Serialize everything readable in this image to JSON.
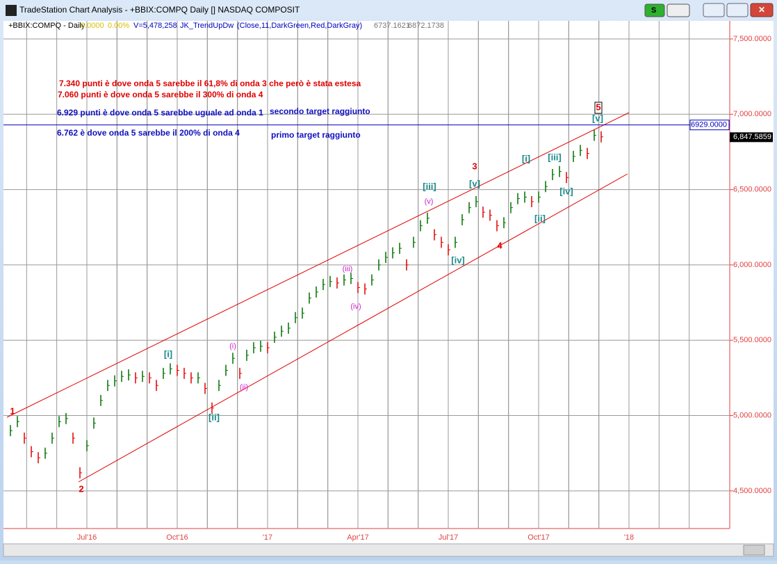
{
  "window": {
    "title": "TradeStation Chart Analysis - +BBIX:COMPQ Daily [] NASDAQ COMPOSIT",
    "button": "S"
  },
  "chart_data": {
    "type": "ohlc",
    "info": [
      "+BBIX:COMPQ - Daily",
      "0.0000",
      "0.00%",
      "V=5,478,258",
      "JK_TrendUpDw",
      "(Close,11,DarkGreen,Red,DarkGray)",
      "6737.1621",
      "6872.1738"
    ],
    "categories": [
      null,
      null,
      null,
      null,
      null,
      null,
      null,
      null,
      null,
      null,
      null,
      "Jul'16",
      null,
      null,
      null,
      null,
      null,
      null,
      null,
      null,
      null,
      null,
      null,
      null,
      "Oct'16",
      null,
      null,
      null,
      null,
      null,
      null,
      null,
      null,
      null,
      null,
      null,
      null,
      "'17",
      null,
      null,
      null,
      null,
      null,
      null,
      null,
      null,
      null,
      null,
      null,
      null,
      "Apr'17",
      null,
      null,
      null,
      null,
      null,
      null,
      null,
      null,
      null,
      null,
      null,
      null,
      "Jul'17",
      null,
      null,
      null,
      null,
      null,
      null,
      null,
      null,
      null,
      null,
      null,
      null,
      "Oct'17",
      null,
      null,
      null,
      null,
      null,
      null,
      null,
      null,
      null,
      null,
      null,
      null,
      "'18"
    ],
    "values": [
      4900,
      4960,
      4850,
      4760,
      4720,
      4750,
      4850,
      4960,
      4980,
      4850,
      4620,
      4800,
      4950,
      5100,
      5200,
      5230,
      5260,
      5270,
      5250,
      5260,
      5250,
      5200,
      5280,
      5310,
      5300,
      5280,
      5250,
      5250,
      5180,
      5050,
      5200,
      5300,
      5380,
      5280,
      5400,
      5450,
      5460,
      5450,
      5520,
      5560,
      5580,
      5650,
      5680,
      5780,
      5820,
      5870,
      5890,
      5880,
      5900,
      5910,
      5850,
      5840,
      5900,
      6000,
      6050,
      6080,
      6110,
      6000,
      6150,
      6260,
      6310,
      6200,
      6150,
      6100,
      6150,
      6300,
      6380,
      6420,
      6350,
      6330,
      6260,
      6280,
      6380,
      6440,
      6450,
      6420,
      6450,
      6520,
      6600,
      6620,
      6580,
      6720,
      6760,
      6740,
      6860,
      6850,
      null,
      null,
      null,
      null
    ],
    "up_color": "#007000",
    "down_color": "#e00000",
    "ylim": [
      4250,
      7620
    ],
    "yticks": [
      {
        "value": 4500,
        "label": "4,500.0000"
      },
      {
        "value": 5000,
        "label": "5,000.0000"
      },
      {
        "value": 5500,
        "label": "5,500.0000"
      },
      {
        "value": 6000,
        "label": "6,000.0000"
      },
      {
        "value": 6500,
        "label": "6,500.0000"
      },
      {
        "value": 7000,
        "label": "7,000.0000"
      },
      {
        "value": 7500,
        "label": "7,500.0000"
      }
    ],
    "grid": true,
    "hline": {
      "value": 6929,
      "label": "6929.0000"
    },
    "last_price": {
      "value": 6847.5859,
      "label": "6,847.5859"
    },
    "waves": [
      "1",
      "2",
      "3",
      "4",
      "5",
      "[i]",
      "[ii]",
      "[iii]",
      "[iv]",
      "[v]",
      "[i]",
      "[ii]",
      "[iii]",
      "[iv]",
      "[v]",
      "(i)",
      "(ii)",
      "(iii)",
      "(iv)",
      "(v)"
    ],
    "notes": [
      "7.340 punti è dove onda 5 sarebbe il 61,8% di onda 3 che però è stata estesa",
      "7.060 punti è dove onda 5 sarebbe il 300% di onda 4",
      "6.929 punti è dove onda 5 sarebbe uguale ad onda 1",
      "secondo target raggiunto",
      "6.762 è dove onda 5 sarebbe il 200% di onda 4",
      "primo target raggiunto"
    ]
  }
}
